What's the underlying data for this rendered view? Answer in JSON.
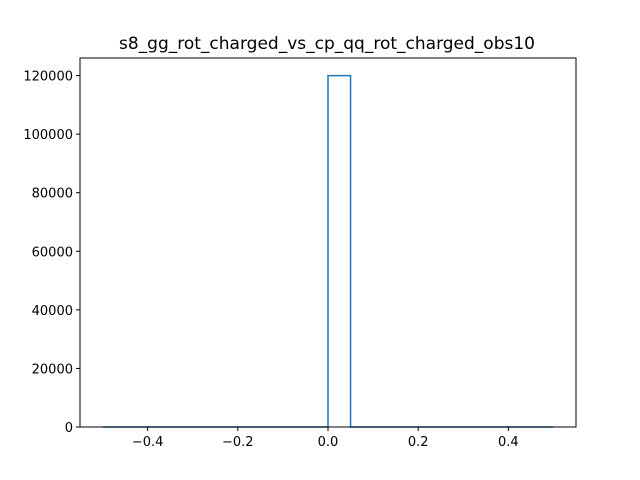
{
  "chart_data": {
    "type": "histogram",
    "title": "s8_gg_rot_charged_vs_cp_qq_rot_charged_obs10",
    "xlabel": "",
    "ylabel": "",
    "xlim": [
      -0.55,
      0.55
    ],
    "ylim": [
      0,
      126000
    ],
    "histogram_range": [
      -0.5,
      0.5
    ],
    "bins": [
      {
        "x0": 0.0,
        "x1": 0.05,
        "count": 120000
      }
    ],
    "xticks": [
      -0.4,
      -0.2,
      0.0,
      0.2,
      0.4
    ],
    "xtick_labels": [
      "−0.4",
      "−0.2",
      "0.0",
      "0.2",
      "0.4"
    ],
    "yticks": [
      0,
      20000,
      40000,
      60000,
      80000,
      100000,
      120000
    ],
    "ytick_labels": [
      "0",
      "20000",
      "40000",
      "60000",
      "80000",
      "100000",
      "120000"
    ],
    "grid": false,
    "legend": "none",
    "colors": {
      "series": "#1f77b4",
      "axes": "#000000"
    }
  }
}
